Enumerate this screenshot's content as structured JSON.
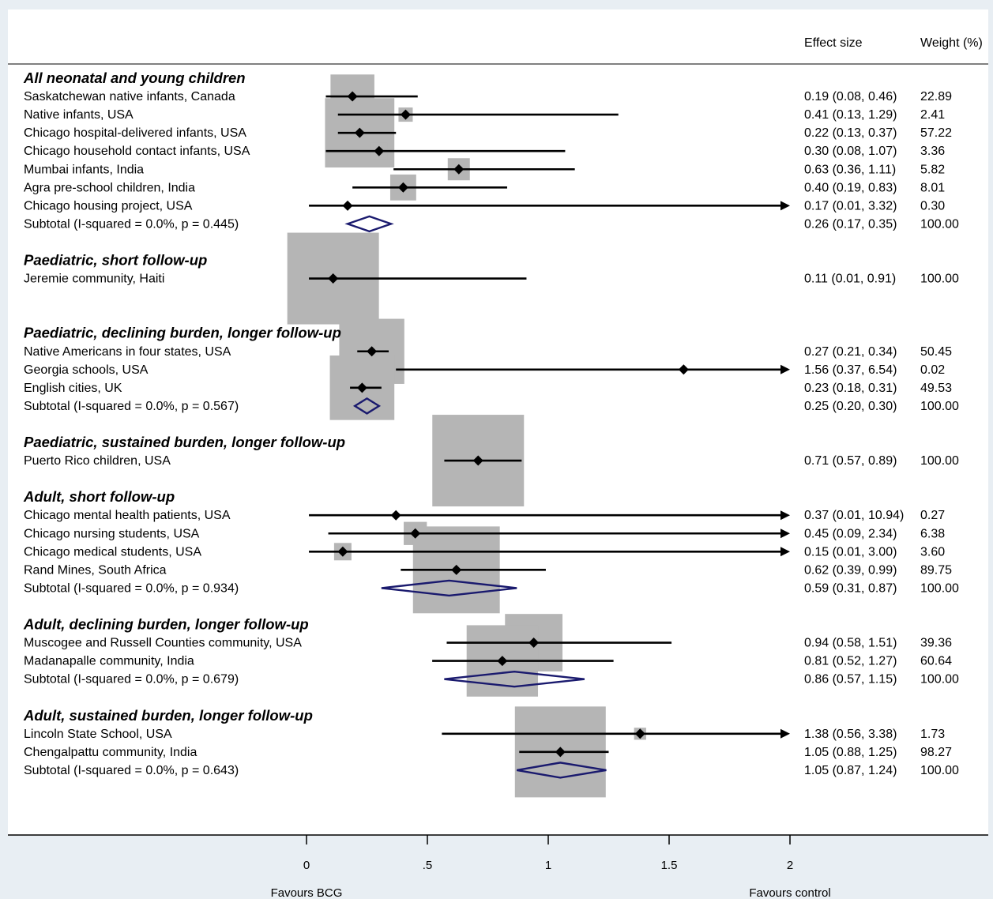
{
  "chart_data": {
    "type": "forest",
    "columns": {
      "effect": "Effect size",
      "weight": "Weight (%)"
    },
    "xaxis": {
      "ticks": [
        0,
        0.5,
        1,
        1.5,
        2
      ],
      "tick_labels": [
        "0",
        ".5",
        "1",
        "1.5",
        "2"
      ],
      "xlim": [
        0,
        2
      ],
      "left_label": "Favours BCG",
      "right_label": "Favours control"
    },
    "rows": [
      {
        "kind": "group",
        "label": "All neonatal and young children"
      },
      {
        "kind": "study",
        "label": "Saskatchewan native infants, Canada",
        "es": 0.19,
        "lo": 0.08,
        "hi": 0.46,
        "effect_text": "0.19 (0.08, 0.46)",
        "weight": 22.89,
        "weight_text": "22.89"
      },
      {
        "kind": "study",
        "label": "Native infants, USA",
        "es": 0.41,
        "lo": 0.13,
        "hi": 1.29,
        "effect_text": "0.41 (0.13, 1.29)",
        "weight": 2.41,
        "weight_text": "2.41"
      },
      {
        "kind": "study",
        "label": "Chicago hospital-delivered infants, USA",
        "es": 0.22,
        "lo": 0.13,
        "hi": 0.37,
        "effect_text": "0.22 (0.13, 0.37)",
        "weight": 57.22,
        "weight_text": "57.22"
      },
      {
        "kind": "study",
        "label": "Chicago household contact infants, USA",
        "es": 0.3,
        "lo": 0.08,
        "hi": 1.07,
        "effect_text": "0.30 (0.08, 1.07)",
        "weight": 3.36,
        "weight_text": "3.36"
      },
      {
        "kind": "study",
        "label": "Mumbai infants, India",
        "es": 0.63,
        "lo": 0.36,
        "hi": 1.11,
        "effect_text": "0.63 (0.36, 1.11)",
        "weight": 5.82,
        "weight_text": "5.82"
      },
      {
        "kind": "study",
        "label": "Agra pre-school children, India",
        "es": 0.4,
        "lo": 0.19,
        "hi": 0.83,
        "effect_text": "0.40 (0.19, 0.83)",
        "weight": 8.01,
        "weight_text": "8.01"
      },
      {
        "kind": "study",
        "label": "Chicago housing project, USA",
        "es": 0.17,
        "lo": 0.01,
        "hi": 3.32,
        "effect_text": "0.17 (0.01, 3.32)",
        "weight": 0.3,
        "weight_text": "0.30"
      },
      {
        "kind": "subtotal",
        "label": "Subtotal  (I-squared = 0.0%, p = 0.445)",
        "es": 0.26,
        "lo": 0.17,
        "hi": 0.35,
        "effect_text": "0.26 (0.17, 0.35)",
        "weight_text": "100.00"
      },
      {
        "kind": "blank"
      },
      {
        "kind": "group",
        "label": "Paediatric, short follow-up"
      },
      {
        "kind": "study",
        "label": "Jeremie community, Haiti",
        "es": 0.11,
        "lo": 0.01,
        "hi": 0.91,
        "effect_text": "0.11 (0.01, 0.91)",
        "weight": 100.0,
        "weight_text": "100.00"
      },
      {
        "kind": "blank"
      },
      {
        "kind": "blank"
      },
      {
        "kind": "group",
        "label": "Paediatric, declining burden, longer follow-up"
      },
      {
        "kind": "study",
        "label": "Native Americans in four states, USA",
        "es": 0.27,
        "lo": 0.21,
        "hi": 0.34,
        "effect_text": "0.27 (0.21, 0.34)",
        "weight": 50.45,
        "weight_text": "50.45"
      },
      {
        "kind": "study",
        "label": "Georgia schools, USA",
        "es": 1.56,
        "lo": 0.37,
        "hi": 6.54,
        "effect_text": "1.56 (0.37, 6.54)",
        "weight": 0.02,
        "weight_text": "0.02"
      },
      {
        "kind": "study",
        "label": "English cities, UK",
        "es": 0.23,
        "lo": 0.18,
        "hi": 0.31,
        "effect_text": "0.23 (0.18, 0.31)",
        "weight": 49.53,
        "weight_text": "49.53"
      },
      {
        "kind": "subtotal",
        "label": "Subtotal  (I-squared = 0.0%, p = 0.567)",
        "es": 0.25,
        "lo": 0.2,
        "hi": 0.3,
        "effect_text": "0.25 (0.20, 0.30)",
        "weight_text": "100.00"
      },
      {
        "kind": "blank"
      },
      {
        "kind": "group",
        "label": "Paediatric, sustained burden, longer follow-up"
      },
      {
        "kind": "study",
        "label": "Puerto Rico children, USA",
        "es": 0.71,
        "lo": 0.57,
        "hi": 0.89,
        "effect_text": "0.71 (0.57, 0.89)",
        "weight": 100.0,
        "weight_text": "100.00"
      },
      {
        "kind": "blank"
      },
      {
        "kind": "group",
        "label": "Adult, short follow-up"
      },
      {
        "kind": "study",
        "label": "Chicago mental health patients, USA",
        "es": 0.37,
        "lo": 0.01,
        "hi": 10.94,
        "effect_text": "0.37 (0.01, 10.94)",
        "weight": 0.27,
        "weight_text": "0.27"
      },
      {
        "kind": "study",
        "label": "Chicago nursing students, USA",
        "es": 0.45,
        "lo": 0.09,
        "hi": 2.34,
        "effect_text": "0.45 (0.09, 2.34)",
        "weight": 6.38,
        "weight_text": "6.38"
      },
      {
        "kind": "study",
        "label": "Chicago medical students, USA",
        "es": 0.15,
        "lo": 0.01,
        "hi": 3.0,
        "effect_text": "0.15 (0.01, 3.00)",
        "weight": 3.6,
        "weight_text": "3.60"
      },
      {
        "kind": "study",
        "label": "Rand Mines, South Africa",
        "es": 0.62,
        "lo": 0.39,
        "hi": 0.99,
        "effect_text": "0.62 (0.39, 0.99)",
        "weight": 89.75,
        "weight_text": "89.75"
      },
      {
        "kind": "subtotal",
        "label": "Subtotal  (I-squared = 0.0%, p = 0.934)",
        "es": 0.59,
        "lo": 0.31,
        "hi": 0.87,
        "effect_text": "0.59 (0.31, 0.87)",
        "weight_text": "100.00"
      },
      {
        "kind": "blank"
      },
      {
        "kind": "group",
        "label": "Adult, declining burden, longer follow-up"
      },
      {
        "kind": "study",
        "label": "Muscogee and Russell Counties community, USA",
        "es": 0.94,
        "lo": 0.58,
        "hi": 1.51,
        "effect_text": "0.94 (0.58, 1.51)",
        "weight": 39.36,
        "weight_text": "39.36"
      },
      {
        "kind": "study",
        "label": "Madanapalle community, India",
        "es": 0.81,
        "lo": 0.52,
        "hi": 1.27,
        "effect_text": "0.81 (0.52, 1.27)",
        "weight": 60.64,
        "weight_text": "60.64"
      },
      {
        "kind": "subtotal",
        "label": "Subtotal  (I-squared = 0.0%, p = 0.679)",
        "es": 0.86,
        "lo": 0.57,
        "hi": 1.15,
        "effect_text": "0.86 (0.57, 1.15)",
        "weight_text": "100.00"
      },
      {
        "kind": "blank"
      },
      {
        "kind": "group",
        "label": "Adult, sustained burden, longer follow-up"
      },
      {
        "kind": "study",
        "label": "Lincoln State School, USA",
        "es": 1.38,
        "lo": 0.56,
        "hi": 3.38,
        "effect_text": "1.38 (0.56, 3.38)",
        "weight": 1.73,
        "weight_text": "1.73"
      },
      {
        "kind": "study",
        "label": "Chengalpattu community, India",
        "es": 1.05,
        "lo": 0.88,
        "hi": 1.25,
        "effect_text": "1.05 (0.88, 1.25)",
        "weight": 98.27,
        "weight_text": "98.27"
      },
      {
        "kind": "subtotal",
        "label": "Subtotal  (I-squared = 0.0%, p = 0.643)",
        "es": 1.05,
        "lo": 0.87,
        "hi": 1.24,
        "effect_text": "1.05 (0.87, 1.24)",
        "weight_text": "100.00"
      }
    ],
    "colors": {
      "box": "#b5b5b5",
      "line": "#000000",
      "diamond": "#1a1a6e",
      "background": "#e8eef3",
      "panel": "#ffffff"
    }
  }
}
